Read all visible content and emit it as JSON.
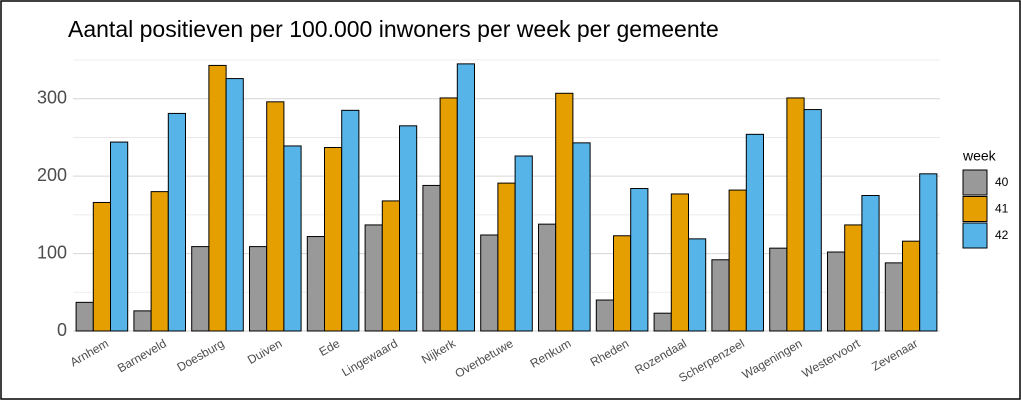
{
  "chart_data": {
    "type": "bar",
    "title": "Aantal positieven per 100.000 inwoners per week per gemeente",
    "categories": [
      "Arnhem",
      "Barneveld",
      "Doesburg",
      "Duiven",
      "Ede",
      "Lingewaard",
      "Nijkerk",
      "Overbetuwe",
      "Renkum",
      "Rheden",
      "Rozendaal",
      "Scherpenzeel",
      "Wageningen",
      "Westervoort",
      "Zevenaar"
    ],
    "legend_title": "week",
    "series": [
      {
        "name": "40",
        "color": "#999999",
        "values": [
          37,
          26,
          109,
          109,
          122,
          137,
          188,
          124,
          138,
          40,
          23,
          92,
          107,
          102,
          88
        ]
      },
      {
        "name": "41",
        "color": "#E69F00",
        "values": [
          166,
          180,
          343,
          296,
          237,
          168,
          301,
          191,
          307,
          123,
          177,
          182,
          301,
          137,
          116
        ]
      },
      {
        "name": "42",
        "color": "#56B4E9",
        "values": [
          244,
          281,
          326,
          239,
          285,
          265,
          345,
          226,
          243,
          184,
          119,
          254,
          286,
          175,
          203
        ]
      }
    ],
    "ylim": [
      0,
      350
    ],
    "yticks": [
      0,
      100,
      200,
      300
    ],
    "minor_yticks": [
      50,
      150,
      250,
      350
    ],
    "grid": true,
    "legend": "right"
  }
}
